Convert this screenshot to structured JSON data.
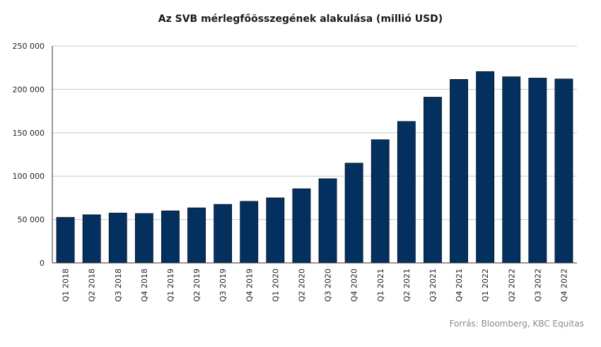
{
  "chart_data": {
    "type": "bar",
    "title": "Az SVB mérlegfőösszegének alakulása (millió USD)",
    "source": "Forrás: Bloomberg, KBC Equitas",
    "categories": [
      "Q1 2018",
      "Q2 2018",
      "Q3 2018",
      "Q4 2018",
      "Q1 2019",
      "Q2 2019",
      "Q3 2019",
      "Q4 2019",
      "Q1 2020",
      "Q2 2020",
      "Q3 2020",
      "Q4 2020",
      "Q1 2021",
      "Q2 2021",
      "Q3 2021",
      "Q4 2021",
      "Q1 2022",
      "Q2 2022",
      "Q3 2022",
      "Q4 2022"
    ],
    "values": [
      52500,
      55500,
      57500,
      57000,
      60000,
      63500,
      67500,
      71000,
      75000,
      85500,
      97000,
      115000,
      142000,
      163000,
      191000,
      211500,
      220500,
      214500,
      213000,
      212000
    ],
    "ylim": [
      0,
      250000
    ],
    "yticks": [
      0,
      50000,
      100000,
      150000,
      200000,
      250000
    ],
    "ytick_labels": [
      "0",
      "50 000",
      "100 000",
      "150 000",
      "200 000",
      "250 000"
    ],
    "bar_color": "#04305f",
    "grid": true,
    "legend": "none"
  }
}
